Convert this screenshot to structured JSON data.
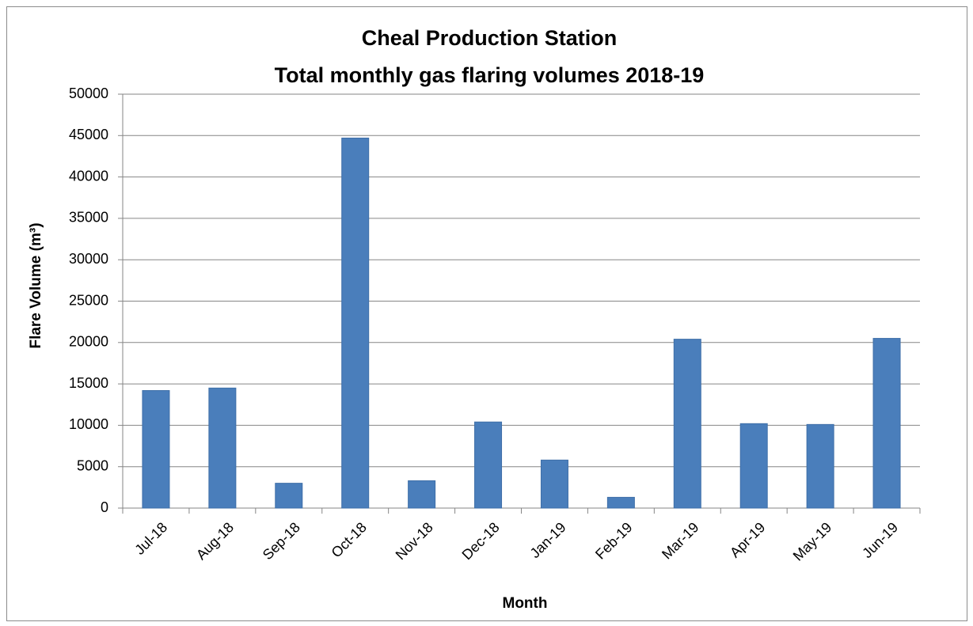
{
  "chart_data": {
    "type": "bar",
    "title": "Cheal Production Station",
    "subtitle": "Total monthly gas flaring volumes 2018-19",
    "y_label": "Flare Volume (m³)",
    "x_label": "Month",
    "categories": [
      "Jul-18",
      "Aug-18",
      "Sep-18",
      "Oct-18",
      "Nov-18",
      "Dec-18",
      "Jan-19",
      "Feb-19",
      "Mar-19",
      "Apr-19",
      "May-19",
      "Jun-19"
    ],
    "values": [
      14200,
      14500,
      3000,
      44700,
      3300,
      10400,
      5800,
      1300,
      20400,
      10200,
      10100,
      20500
    ],
    "color": "#4a7ebb",
    "ylim": [
      0,
      50000
    ],
    "yticks": [
      0,
      5000,
      10000,
      15000,
      20000,
      25000,
      30000,
      35000,
      40000,
      45000,
      50000
    ],
    "grid": true
  }
}
